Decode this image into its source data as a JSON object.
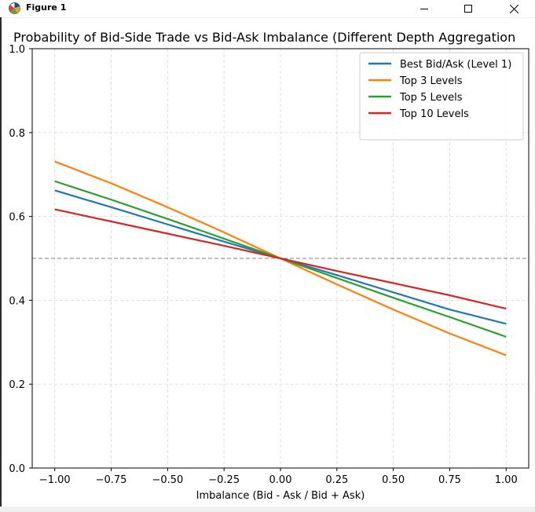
{
  "window": {
    "title": "Figure 1",
    "icons": {
      "app": "matplotlib-figure-icon",
      "minimize": "minimize-icon",
      "maximize": "maximize-icon",
      "close": "close-icon"
    }
  },
  "chart_data": {
    "type": "line",
    "title": "Probability of Bid-Side Trade vs Bid-Ask Imbalance (Different Depth Aggregation",
    "xlabel": "Imbalance (Bid - Ask / Bid + Ask)",
    "ylabel": "",
    "xlim": [
      -1.1,
      1.1
    ],
    "ylim": [
      0.0,
      1.0
    ],
    "xticks": [
      -1.0,
      -0.75,
      -0.5,
      -0.25,
      0.0,
      0.25,
      0.5,
      0.75,
      1.0
    ],
    "xtick_labels": [
      "−1.00",
      "−0.75",
      "−0.50",
      "−0.25",
      "0.00",
      "0.25",
      "0.50",
      "0.75",
      "1.00"
    ],
    "yticks": [
      0.0,
      0.2,
      0.4,
      0.6,
      0.8,
      1.0
    ],
    "ytick_labels": [
      "0.0",
      "0.2",
      "0.4",
      "0.6",
      "0.8",
      "1.0"
    ],
    "grid": true,
    "legend_position": "top-right",
    "reference_line": {
      "y": 0.5,
      "style": "dashed",
      "color": "#808080"
    },
    "x": [
      -1.0,
      -0.75,
      -0.5,
      -0.25,
      0.0,
      0.25,
      0.5,
      0.75,
      1.0
    ],
    "series": [
      {
        "name": "Best Bid/Ask (Level 1)",
        "color": "#1f77b4",
        "values": [
          0.662,
          0.622,
          0.581,
          0.54,
          0.5,
          0.46,
          0.419,
          0.378,
          0.344
        ]
      },
      {
        "name": "Top 3 Levels",
        "color": "#ff7f0e",
        "values": [
          0.731,
          0.679,
          0.622,
          0.562,
          0.5,
          0.438,
          0.378,
          0.321,
          0.269
        ]
      },
      {
        "name": "Top 5 Levels",
        "color": "#2ca02c",
        "values": [
          0.684,
          0.64,
          0.594,
          0.547,
          0.5,
          0.453,
          0.406,
          0.36,
          0.313
        ]
      },
      {
        "name": "Top 10 Levels",
        "color": "#d62728",
        "values": [
          0.617,
          0.588,
          0.559,
          0.53,
          0.5,
          0.47,
          0.441,
          0.412,
          0.38
        ]
      }
    ]
  }
}
